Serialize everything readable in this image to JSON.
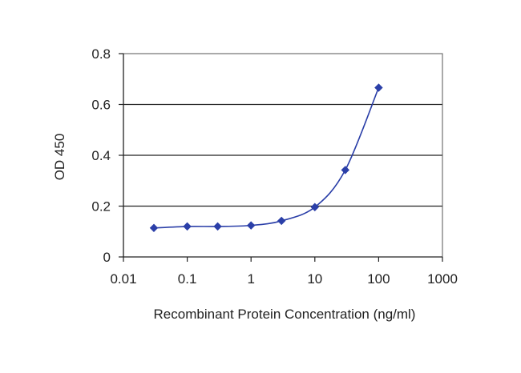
{
  "chart_data": {
    "type": "scatter",
    "title": "",
    "xlabel": "Recombinant Protein Concentration (ng/ml)",
    "ylabel": "OD 450",
    "x_scale": "log",
    "xlim": [
      0.01,
      1000
    ],
    "ylim": [
      0,
      0.8
    ],
    "x_ticks": [
      0.01,
      0.1,
      1,
      10,
      100,
      1000
    ],
    "x_tick_labels": [
      "0.01",
      "0.1",
      "1",
      "10",
      "100",
      "1000"
    ],
    "y_ticks": [
      0,
      0.2,
      0.4,
      0.6,
      0.8
    ],
    "y_tick_labels": [
      "0",
      "0.2",
      "0.4",
      "0.6",
      "0.8"
    ],
    "grid": "horizontal",
    "legend": "none",
    "colors": {
      "series": "#2b3fa8",
      "grid": "#222222",
      "axis": "#222222"
    },
    "series": [
      {
        "marker": "diamond",
        "line": "smooth",
        "points": [
          {
            "x": 0.03,
            "y": 0.114
          },
          {
            "x": 0.1,
            "y": 0.12
          },
          {
            "x": 0.3,
            "y": 0.12
          },
          {
            "x": 1,
            "y": 0.124
          },
          {
            "x": 3,
            "y": 0.142
          },
          {
            "x": 10,
            "y": 0.196
          },
          {
            "x": 30,
            "y": 0.342
          },
          {
            "x": 100,
            "y": 0.666
          }
        ]
      }
    ]
  }
}
